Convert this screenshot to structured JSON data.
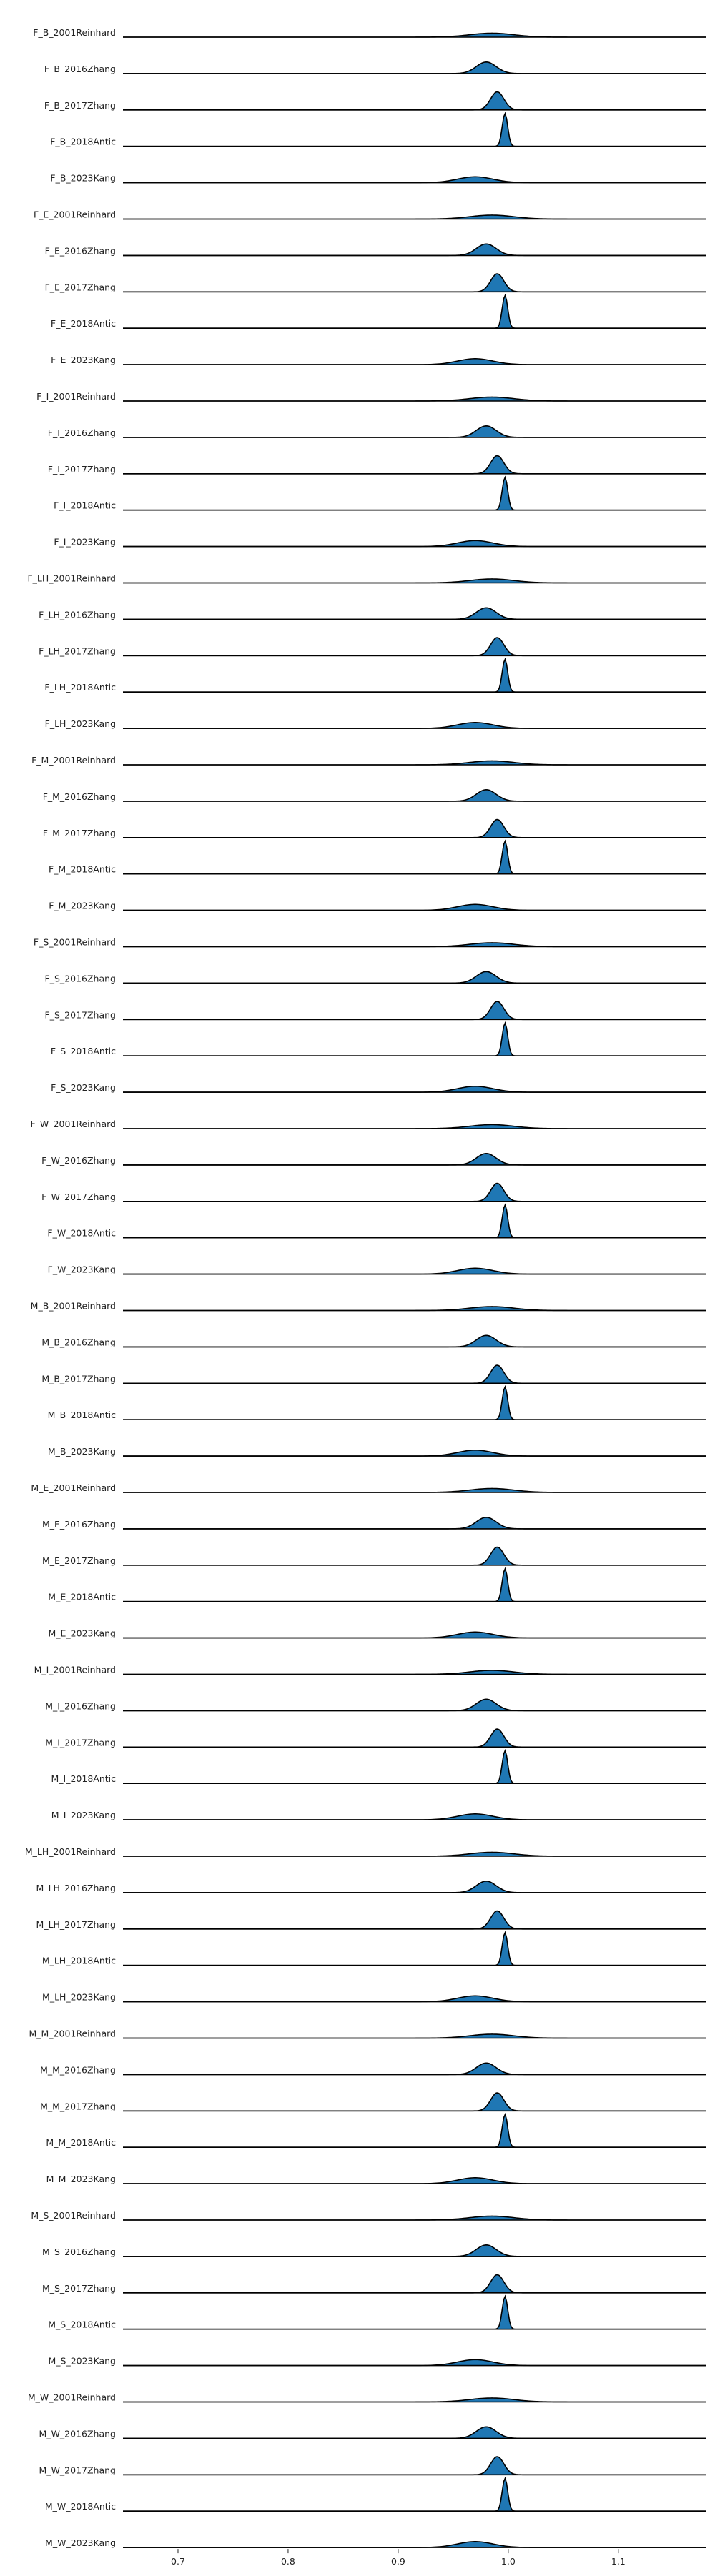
{
  "chart_data": {
    "type": "area",
    "title": "",
    "xlabel": "",
    "ylabel": "",
    "xlim": [
      0.65,
      1.18
    ],
    "xticks": [
      0.7,
      0.8,
      0.9,
      1.0,
      1.1
    ],
    "xtick_labels": [
      "0.7",
      "0.8",
      "0.9",
      "1.0",
      "1.1"
    ],
    "grid": false,
    "legend": "none",
    "fill_color": "#1f77b4",
    "line_color": "#000000",
    "rows": [
      {
        "label": "F_B_2001Reinhard",
        "peak": 0.985,
        "width": 0.02,
        "height": 0.12
      },
      {
        "label": "F_B_2016Zhang",
        "peak": 0.98,
        "width": 0.009,
        "height": 0.35
      },
      {
        "label": "F_B_2017Zhang",
        "peak": 0.99,
        "width": 0.006,
        "height": 0.55
      },
      {
        "label": "F_B_2018Antic",
        "peak": 0.997,
        "width": 0.0025,
        "height": 1.0
      },
      {
        "label": "F_B_2023Kang",
        "peak": 0.97,
        "width": 0.016,
        "height": 0.18
      },
      {
        "label": "F_E_2001Reinhard",
        "peak": 0.985,
        "width": 0.02,
        "height": 0.12
      },
      {
        "label": "F_E_2016Zhang",
        "peak": 0.98,
        "width": 0.009,
        "height": 0.35
      },
      {
        "label": "F_E_2017Zhang",
        "peak": 0.99,
        "width": 0.006,
        "height": 0.55
      },
      {
        "label": "F_E_2018Antic",
        "peak": 0.997,
        "width": 0.0025,
        "height": 1.0
      },
      {
        "label": "F_E_2023Kang",
        "peak": 0.97,
        "width": 0.016,
        "height": 0.18
      },
      {
        "label": "F_I_2001Reinhard",
        "peak": 0.985,
        "width": 0.02,
        "height": 0.12
      },
      {
        "label": "F_I_2016Zhang",
        "peak": 0.98,
        "width": 0.009,
        "height": 0.35
      },
      {
        "label": "F_I_2017Zhang",
        "peak": 0.99,
        "width": 0.006,
        "height": 0.55
      },
      {
        "label": "F_I_2018Antic",
        "peak": 0.997,
        "width": 0.0025,
        "height": 1.0
      },
      {
        "label": "F_I_2023Kang",
        "peak": 0.97,
        "width": 0.016,
        "height": 0.18
      },
      {
        "label": "F_LH_2001Reinhard",
        "peak": 0.985,
        "width": 0.02,
        "height": 0.12
      },
      {
        "label": "F_LH_2016Zhang",
        "peak": 0.98,
        "width": 0.009,
        "height": 0.35
      },
      {
        "label": "F_LH_2017Zhang",
        "peak": 0.99,
        "width": 0.006,
        "height": 0.55
      },
      {
        "label": "F_LH_2018Antic",
        "peak": 0.997,
        "width": 0.0025,
        "height": 1.0
      },
      {
        "label": "F_LH_2023Kang",
        "peak": 0.97,
        "width": 0.016,
        "height": 0.18
      },
      {
        "label": "F_M_2001Reinhard",
        "peak": 0.985,
        "width": 0.02,
        "height": 0.12
      },
      {
        "label": "F_M_2016Zhang",
        "peak": 0.98,
        "width": 0.009,
        "height": 0.35
      },
      {
        "label": "F_M_2017Zhang",
        "peak": 0.99,
        "width": 0.006,
        "height": 0.55
      },
      {
        "label": "F_M_2018Antic",
        "peak": 0.997,
        "width": 0.0025,
        "height": 1.0
      },
      {
        "label": "F_M_2023Kang",
        "peak": 0.97,
        "width": 0.016,
        "height": 0.18
      },
      {
        "label": "F_S_2001Reinhard",
        "peak": 0.985,
        "width": 0.02,
        "height": 0.12
      },
      {
        "label": "F_S_2016Zhang",
        "peak": 0.98,
        "width": 0.009,
        "height": 0.35
      },
      {
        "label": "F_S_2017Zhang",
        "peak": 0.99,
        "width": 0.006,
        "height": 0.55
      },
      {
        "label": "F_S_2018Antic",
        "peak": 0.997,
        "width": 0.0025,
        "height": 1.0
      },
      {
        "label": "F_S_2023Kang",
        "peak": 0.97,
        "width": 0.016,
        "height": 0.18
      },
      {
        "label": "F_W_2001Reinhard",
        "peak": 0.985,
        "width": 0.02,
        "height": 0.12
      },
      {
        "label": "F_W_2016Zhang",
        "peak": 0.98,
        "width": 0.009,
        "height": 0.35
      },
      {
        "label": "F_W_2017Zhang",
        "peak": 0.99,
        "width": 0.006,
        "height": 0.55
      },
      {
        "label": "F_W_2018Antic",
        "peak": 0.997,
        "width": 0.0025,
        "height": 1.0
      },
      {
        "label": "F_W_2023Kang",
        "peak": 0.97,
        "width": 0.016,
        "height": 0.18
      },
      {
        "label": "M_B_2001Reinhard",
        "peak": 0.985,
        "width": 0.02,
        "height": 0.12
      },
      {
        "label": "M_B_2016Zhang",
        "peak": 0.98,
        "width": 0.009,
        "height": 0.35
      },
      {
        "label": "M_B_2017Zhang",
        "peak": 0.99,
        "width": 0.006,
        "height": 0.55
      },
      {
        "label": "M_B_2018Antic",
        "peak": 0.997,
        "width": 0.0025,
        "height": 1.0
      },
      {
        "label": "M_B_2023Kang",
        "peak": 0.97,
        "width": 0.016,
        "height": 0.18
      },
      {
        "label": "M_E_2001Reinhard",
        "peak": 0.985,
        "width": 0.02,
        "height": 0.12
      },
      {
        "label": "M_E_2016Zhang",
        "peak": 0.98,
        "width": 0.009,
        "height": 0.35
      },
      {
        "label": "M_E_2017Zhang",
        "peak": 0.99,
        "width": 0.006,
        "height": 0.55
      },
      {
        "label": "M_E_2018Antic",
        "peak": 0.997,
        "width": 0.0025,
        "height": 1.0
      },
      {
        "label": "M_E_2023Kang",
        "peak": 0.97,
        "width": 0.016,
        "height": 0.18
      },
      {
        "label": "M_I_2001Reinhard",
        "peak": 0.985,
        "width": 0.02,
        "height": 0.12
      },
      {
        "label": "M_I_2016Zhang",
        "peak": 0.98,
        "width": 0.009,
        "height": 0.35
      },
      {
        "label": "M_I_2017Zhang",
        "peak": 0.99,
        "width": 0.006,
        "height": 0.55
      },
      {
        "label": "M_I_2018Antic",
        "peak": 0.997,
        "width": 0.0025,
        "height": 1.0
      },
      {
        "label": "M_I_2023Kang",
        "peak": 0.97,
        "width": 0.016,
        "height": 0.18
      },
      {
        "label": "M_LH_2001Reinhard",
        "peak": 0.985,
        "width": 0.02,
        "height": 0.12
      },
      {
        "label": "M_LH_2016Zhang",
        "peak": 0.98,
        "width": 0.009,
        "height": 0.35
      },
      {
        "label": "M_LH_2017Zhang",
        "peak": 0.99,
        "width": 0.006,
        "height": 0.55
      },
      {
        "label": "M_LH_2018Antic",
        "peak": 0.997,
        "width": 0.0025,
        "height": 1.0
      },
      {
        "label": "M_LH_2023Kang",
        "peak": 0.97,
        "width": 0.016,
        "height": 0.18
      },
      {
        "label": "M_M_2001Reinhard",
        "peak": 0.985,
        "width": 0.02,
        "height": 0.12
      },
      {
        "label": "M_M_2016Zhang",
        "peak": 0.98,
        "width": 0.009,
        "height": 0.35
      },
      {
        "label": "M_M_2017Zhang",
        "peak": 0.99,
        "width": 0.006,
        "height": 0.55
      },
      {
        "label": "M_M_2018Antic",
        "peak": 0.997,
        "width": 0.0025,
        "height": 1.0
      },
      {
        "label": "M_M_2023Kang",
        "peak": 0.97,
        "width": 0.016,
        "height": 0.18
      },
      {
        "label": "M_S_2001Reinhard",
        "peak": 0.985,
        "width": 0.02,
        "height": 0.12
      },
      {
        "label": "M_S_2016Zhang",
        "peak": 0.98,
        "width": 0.009,
        "height": 0.35
      },
      {
        "label": "M_S_2017Zhang",
        "peak": 0.99,
        "width": 0.006,
        "height": 0.55
      },
      {
        "label": "M_S_2018Antic",
        "peak": 0.997,
        "width": 0.0025,
        "height": 1.0
      },
      {
        "label": "M_S_2023Kang",
        "peak": 0.97,
        "width": 0.016,
        "height": 0.18
      },
      {
        "label": "M_W_2001Reinhard",
        "peak": 0.985,
        "width": 0.02,
        "height": 0.12
      },
      {
        "label": "M_W_2016Zhang",
        "peak": 0.98,
        "width": 0.009,
        "height": 0.35
      },
      {
        "label": "M_W_2017Zhang",
        "peak": 0.99,
        "width": 0.006,
        "height": 0.55
      },
      {
        "label": "M_W_2018Antic",
        "peak": 0.997,
        "width": 0.0025,
        "height": 1.0
      },
      {
        "label": "M_W_2023Kang",
        "peak": 0.97,
        "width": 0.016,
        "height": 0.18
      }
    ]
  }
}
